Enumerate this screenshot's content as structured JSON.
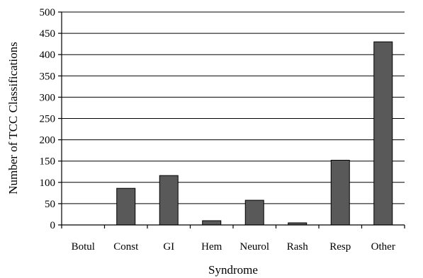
{
  "chart_data": {
    "type": "bar",
    "title": "",
    "xlabel": "Syndrome",
    "ylabel": "Number of TCC Classifications",
    "categories": [
      "Botul",
      "Const",
      "GI",
      "Hem",
      "Neurol",
      "Rash",
      "Resp",
      "Other"
    ],
    "values": [
      0,
      86,
      116,
      10,
      58,
      5,
      152,
      430
    ],
    "ylim": [
      0,
      500
    ],
    "yticks": [
      0,
      50,
      100,
      150,
      200,
      250,
      300,
      350,
      400,
      450,
      500
    ],
    "grid": true,
    "legend": "none",
    "bar_color": "#595959"
  }
}
